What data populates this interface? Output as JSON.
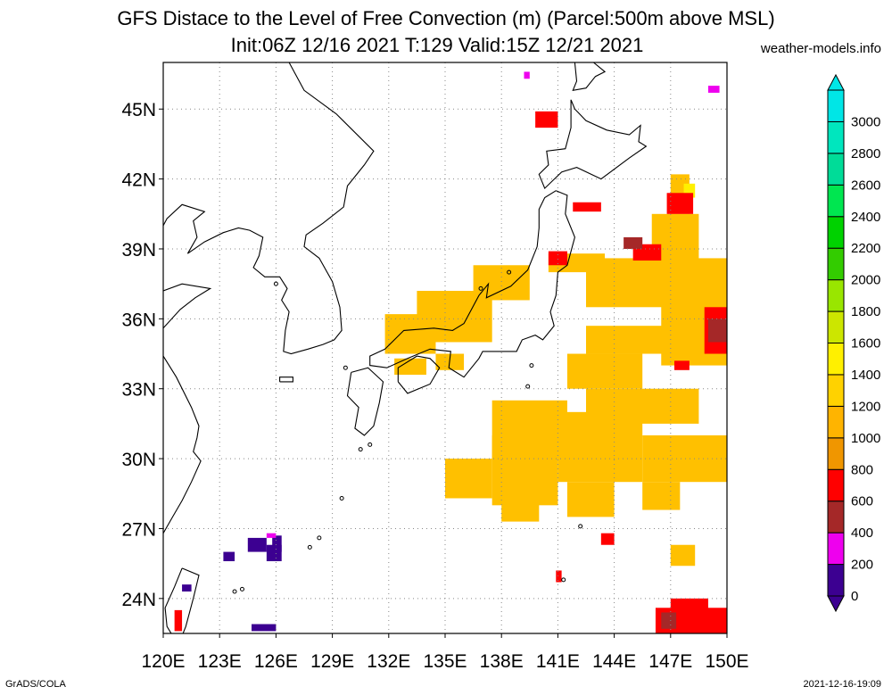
{
  "title_line1": "GFS Distace to the Level of Free Convection (m) (Parcel:500m above MSL)",
  "title_line2": "Init:06Z 12/16 2021 T:129 Valid:15Z 12/21 2021",
  "credit": "weather-models.info",
  "footer_left": "GrADS/COLA",
  "footer_right": "2021-12-16-19:09",
  "axes": {
    "lon_min": 120,
    "lon_max": 150,
    "lat_min": 22.5,
    "lat_max": 47,
    "lon_ticks": [
      {
        "v": 120,
        "label": "120E"
      },
      {
        "v": 123,
        "label": "123E"
      },
      {
        "v": 126,
        "label": "126E"
      },
      {
        "v": 129,
        "label": "129E"
      },
      {
        "v": 132,
        "label": "132E"
      },
      {
        "v": 135,
        "label": "135E"
      },
      {
        "v": 138,
        "label": "138E"
      },
      {
        "v": 141,
        "label": "141E"
      },
      {
        "v": 144,
        "label": "144E"
      },
      {
        "v": 147,
        "label": "147E"
      },
      {
        "v": 150,
        "label": "150E"
      }
    ],
    "lat_ticks": [
      {
        "v": 24,
        "label": "24N"
      },
      {
        "v": 27,
        "label": "27N"
      },
      {
        "v": 30,
        "label": "30N"
      },
      {
        "v": 33,
        "label": "33N"
      },
      {
        "v": 36,
        "label": "36N"
      },
      {
        "v": 39,
        "label": "39N"
      },
      {
        "v": 42,
        "label": "42N"
      },
      {
        "v": 45,
        "label": "45N"
      }
    ],
    "grid": true
  },
  "colorbar": {
    "labels": [
      "0",
      "200",
      "400",
      "600",
      "800",
      "1000",
      "1200",
      "1400",
      "1600",
      "1800",
      "2000",
      "2200",
      "2400",
      "2600",
      "2800",
      "3000"
    ],
    "colors": [
      "#3c0091",
      "#ee00ee",
      "#a52828",
      "#ff0000",
      "#f09600",
      "#ffb400",
      "#ffd200",
      "#fff000",
      "#cce600",
      "#99e600",
      "#33cc00",
      "#00d200",
      "#00e650",
      "#00dc98",
      "#00e6be",
      "#00e6e6"
    ]
  },
  "regions": [
    {
      "lon": [
        133.5,
        137.5
      ],
      "lat": [
        35.0,
        37.2
      ],
      "color": "#ffc000"
    },
    {
      "lon": [
        131.8,
        134.5
      ],
      "lat": [
        34.5,
        36.2
      ],
      "color": "#ffc000"
    },
    {
      "lon": [
        136.5,
        139.5
      ],
      "lat": [
        36.8,
        38.3
      ],
      "color": "#ffc000"
    },
    {
      "lon": [
        132.3,
        134.0
      ],
      "lat": [
        33.6,
        34.3
      ],
      "color": "#ffc000"
    },
    {
      "lon": [
        134.5,
        136.0
      ],
      "lat": [
        33.8,
        34.5
      ],
      "color": "#ffc000"
    },
    {
      "lon": [
        146.5,
        150.0
      ],
      "lat": [
        34.0,
        36.6
      ],
      "color": "#ffc000"
    },
    {
      "lon": [
        142.5,
        147.0
      ],
      "lat": [
        34.5,
        35.7
      ],
      "color": "#ffc000"
    },
    {
      "lon": [
        141.5,
        145.5
      ],
      "lat": [
        33.0,
        34.5
      ],
      "color": "#ffc000"
    },
    {
      "lon": [
        142.5,
        148.5
      ],
      "lat": [
        31.5,
        33.0
      ],
      "color": "#ffc000"
    },
    {
      "lon": [
        137.5,
        141.5
      ],
      "lat": [
        30.0,
        32.5
      ],
      "color": "#ffc000"
    },
    {
      "lon": [
        135.0,
        137.5
      ],
      "lat": [
        28.3,
        30.0
      ],
      "color": "#ffc000"
    },
    {
      "lon": [
        137.5,
        141.0
      ],
      "lat": [
        28.0,
        31.0
      ],
      "color": "#ffc000"
    },
    {
      "lon": [
        138.0,
        140.0
      ],
      "lat": [
        27.3,
        28.5
      ],
      "color": "#ffc000"
    },
    {
      "lon": [
        141.0,
        145.5
      ],
      "lat": [
        29.0,
        32.0
      ],
      "color": "#ffc000"
    },
    {
      "lon": [
        141.5,
        144.0
      ],
      "lat": [
        27.5,
        29.0
      ],
      "color": "#ffc000"
    },
    {
      "lon": [
        145.5,
        150.0
      ],
      "lat": [
        29.0,
        31.0
      ],
      "color": "#ffc000"
    },
    {
      "lon": [
        145.5,
        147.5
      ],
      "lat": [
        27.8,
        29.0
      ],
      "color": "#ffc000"
    },
    {
      "lon": [
        147.0,
        148.3
      ],
      "lat": [
        25.4,
        26.3
      ],
      "color": "#ffc000"
    },
    {
      "lon": [
        142.5,
        150.0
      ],
      "lat": [
        36.5,
        38.6
      ],
      "color": "#ffc000"
    },
    {
      "lon": [
        146.0,
        148.5
      ],
      "lat": [
        38.3,
        40.5
      ],
      "color": "#ffc000"
    },
    {
      "lon": [
        147.0,
        148.0
      ],
      "lat": [
        40.5,
        42.2
      ],
      "color": "#ffc000"
    },
    {
      "lon": [
        148.8,
        150.0
      ],
      "lat": [
        37.0,
        37.8
      ],
      "color": "#ffc000"
    },
    {
      "lon": [
        140.5,
        143.5
      ],
      "lat": [
        38.0,
        38.8
      ],
      "color": "#ffc000"
    },
    {
      "lon": [
        147.7,
        148.3
      ],
      "lat": [
        41.2,
        41.8
      ],
      "color": "#fff000"
    },
    {
      "lon": [
        146.8,
        148.2
      ],
      "lat": [
        40.5,
        41.4
      ],
      "color": "#ff0000"
    },
    {
      "lon": [
        139.8,
        141.0
      ],
      "lat": [
        44.2,
        44.9
      ],
      "color": "#ff0000"
    },
    {
      "lon": [
        141.8,
        143.3
      ],
      "lat": [
        40.6,
        41.0
      ],
      "color": "#ff0000"
    },
    {
      "lon": [
        145.0,
        146.5
      ],
      "lat": [
        38.5,
        39.2
      ],
      "color": "#ff0000"
    },
    {
      "lon": [
        144.5,
        145.5
      ],
      "lat": [
        39.0,
        39.5
      ],
      "color": "#a52828"
    },
    {
      "lon": [
        140.5,
        141.5
      ],
      "lat": [
        38.3,
        38.9
      ],
      "color": "#ff0000"
    },
    {
      "lon": [
        148.8,
        150.0
      ],
      "lat": [
        34.5,
        36.5
      ],
      "color": "#ff0000"
    },
    {
      "lon": [
        147.2,
        148.0
      ],
      "lat": [
        33.8,
        34.2
      ],
      "color": "#ff0000"
    },
    {
      "lon": [
        146.2,
        150.0
      ],
      "lat": [
        22.5,
        23.6
      ],
      "color": "#ff0000"
    },
    {
      "lon": [
        147.0,
        149.0
      ],
      "lat": [
        23.0,
        24.0
      ],
      "color": "#ff0000"
    },
    {
      "lon": [
        143.3,
        144.0
      ],
      "lat": [
        26.3,
        26.8
      ],
      "color": "#ff0000"
    },
    {
      "lon": [
        140.9,
        141.2
      ],
      "lat": [
        24.7,
        25.2
      ],
      "color": "#ff0000"
    },
    {
      "lon": [
        149.0,
        150.0
      ],
      "lat": [
        35.0,
        36.0
      ],
      "color": "#a52828"
    },
    {
      "lon": [
        149.0,
        149.6
      ],
      "lat": [
        45.7,
        46.0
      ],
      "color": "#ee00ee"
    },
    {
      "lon": [
        139.2,
        139.5
      ],
      "lat": [
        46.3,
        46.6
      ],
      "color": "#ee00ee"
    },
    {
      "lon": [
        124.5,
        125.5
      ],
      "lat": [
        26.0,
        26.6
      ],
      "color": "#3c0091"
    },
    {
      "lon": [
        125.8,
        126.3
      ],
      "lat": [
        26.0,
        26.7
      ],
      "color": "#3c0091"
    },
    {
      "lon": [
        123.2,
        123.8
      ],
      "lat": [
        25.6,
        26.0
      ],
      "color": "#3c0091"
    },
    {
      "lon": [
        125.5,
        126.3
      ],
      "lat": [
        25.6,
        26.3
      ],
      "color": "#3c0091"
    },
    {
      "lon": [
        124.7,
        126.0
      ],
      "lat": [
        22.6,
        22.9
      ],
      "color": "#3c0091"
    },
    {
      "lon": [
        121.0,
        121.5
      ],
      "lat": [
        24.3,
        24.6
      ],
      "color": "#3c0091"
    },
    {
      "lon": [
        120.6,
        121.0
      ],
      "lat": [
        22.6,
        23.5
      ],
      "color": "#ff0000"
    },
    {
      "lon": [
        125.5,
        126.0
      ],
      "lat": [
        26.6,
        26.8
      ],
      "color": "#ee00ee"
    },
    {
      "lon": [
        146.5,
        147.3
      ],
      "lat": [
        22.7,
        23.4
      ],
      "color": "#a52828"
    }
  ]
}
